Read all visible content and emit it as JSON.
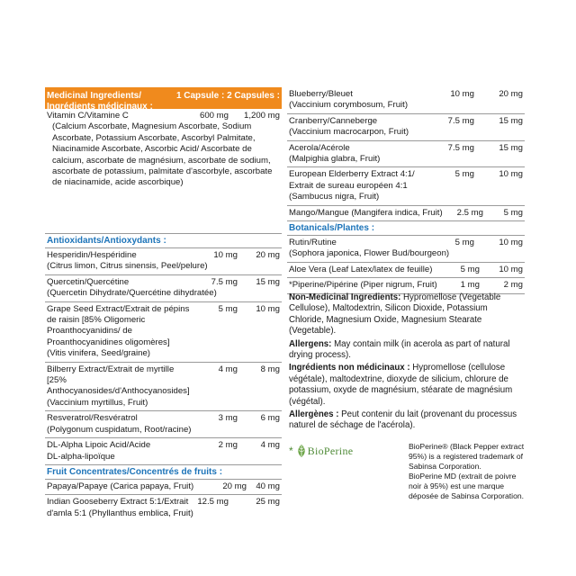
{
  "header": {
    "title_en": "Medicinal Ingredients/",
    "title_fr": "Ingrédients médicinaux :",
    "col1": "1 Capsule :",
    "col2": "2 Capsules :"
  },
  "vitamin_c": {
    "name": "Vitamin C/Vitamine C",
    "c1": "600 mg",
    "c2": "1,200 mg",
    "detail": "(Calcium Ascorbate, Magnesium Ascorbate, Sodium Ascorbate, Potassium Ascorbate, Ascorbyl Palmitate, Niacinamide Ascorbate, Ascorbic Acid/ Ascorbate de calcium, ascorbate de magnésium, ascorbate de sodium, ascorbate de potassium, palmitate d'ascorbyle, ascorbate de niacinamide, acide ascorbique)"
  },
  "sections": {
    "antioxidants": "Antioxidants/Antioxydants :",
    "fruit": "Fruit Concentrates/Concentrés de fruits :",
    "botanicals": "Botanicals/Plantes :"
  },
  "antioxidants": [
    {
      "name": "Hesperidin/Hespéridine",
      "c1": "10 mg",
      "c2": "20 mg",
      "detail": "(Citrus limon, Citrus sinensis, Peel/pelure)"
    },
    {
      "name": "Quercetin/Quercétine",
      "c1": "7.5 mg",
      "c2": "15 mg",
      "detail": "(Quercetin Dihydrate/Quercétine dihydratée)"
    },
    {
      "name": "Grape Seed Extract/Extrait de pépins de raisin [85% Oligomeric Proanthocyanidins/ de Proanthocyanidines oligomères]",
      "c1": "5 mg",
      "c2": "10 mg",
      "detail": "(Vitis vinifera, Seed/graine)"
    },
    {
      "name": "Bilberry Extract/Extrait de myrtille [25% Anthocyanosides/d'Anthocyanosides]",
      "c1": "4 mg",
      "c2": "8 mg",
      "detail": "(Vaccinium myrtillus, Fruit)"
    },
    {
      "name": "Resveratrol/Resvératrol",
      "c1": "3 mg",
      "c2": "6 mg",
      "detail": "(Polygonum cuspidatum, Root/racine)"
    },
    {
      "name": "DL-Alpha Lipoic Acid/Acide DL-alpha-lipoïque",
      "c1": "2 mg",
      "c2": "4 mg",
      "detail": ""
    }
  ],
  "fruit": [
    {
      "name": "Papaya/Papaye (Carica papaya, Fruit)",
      "c1": "20 mg",
      "c2": "40 mg",
      "detail": ""
    },
    {
      "name": "Indian Gooseberry Extract 5:1/Extrait d'amla 5:1 (Phyllanthus emblica, Fruit)",
      "c1": "12.5 mg",
      "c2": "25 mg",
      "detail": ""
    }
  ],
  "right_fruit": [
    {
      "name": "Blueberry/Bleuet",
      "c1": "10 mg",
      "c2": "20 mg",
      "detail": "(Vaccinium corymbosum, Fruit)"
    },
    {
      "name": "Cranberry/Canneberge",
      "c1": "7.5 mg",
      "c2": "15 mg",
      "detail": "(Vaccinium macrocarpon, Fruit)"
    },
    {
      "name": "Acerola/Acérole",
      "c1": "7.5 mg",
      "c2": "15 mg",
      "detail": "(Malpighia glabra, Fruit)"
    },
    {
      "name": "European Elderberry Extract 4:1/ Extrait de sureau européen 4:1",
      "c1": "5 mg",
      "c2": "10 mg",
      "detail": "(Sambucus nigra, Fruit)"
    },
    {
      "name": "Mango/Mangue (Mangifera indica, Fruit)",
      "c1": "2.5 mg",
      "c2": "5 mg",
      "detail": ""
    }
  ],
  "botanicals": [
    {
      "name": "Rutin/Rutine",
      "c1": "5 mg",
      "c2": "10 mg",
      "detail": "(Sophora japonica, Flower Bud/bourgeon)"
    },
    {
      "name": "Aloe Vera (Leaf Latex/latex de feuille)",
      "c1": "5 mg",
      "c2": "10 mg",
      "detail": ""
    },
    {
      "name": "*Piperine/Pipérine (Piper nigrum, Fruit)",
      "c1": "1 mg",
      "c2": "2 mg",
      "detail": ""
    }
  ],
  "notes": {
    "nmi_label": "Non-Medicinal Ingredients:",
    "nmi_text": "Hypromellose (Vegetable Cellulose), Maltodextrin, Silicon Dioxide, Potassium Chloride, Magnesium Oxide, Magnesium Stearate (Vegetable).",
    "allergens_label": "Allergens:",
    "allergens_text": "May contain milk (in acerola as part of natural drying process).",
    "inm_label": "Ingrédients non médicinaux :",
    "inm_text": "Hypromellose (cellulose végétale), maltodextrine, dioxyde de silicium, chlorure de potassium, oxyde de magnésium, stéarate de magnésium (végétal).",
    "allergenes_label": "Allergènes :",
    "allergenes_text": "Peut contenir du lait (provenant du processus naturel de séchage de l'acérola)."
  },
  "bioperine": {
    "logo_text": "BioPerine",
    "asterisk": "*",
    "line1": "BioPerine® (Black Pepper extract 95%) is a registered trademark of Sabinsa Corporation.",
    "line2": "BioPerine MD (extrait de poivre noir à 95%) est une marque déposée de Sabinsa Corporation.",
    "logo_color": "#4e8a36"
  },
  "colors": {
    "accent": "#f08a1d",
    "section": "#1d74b9"
  }
}
